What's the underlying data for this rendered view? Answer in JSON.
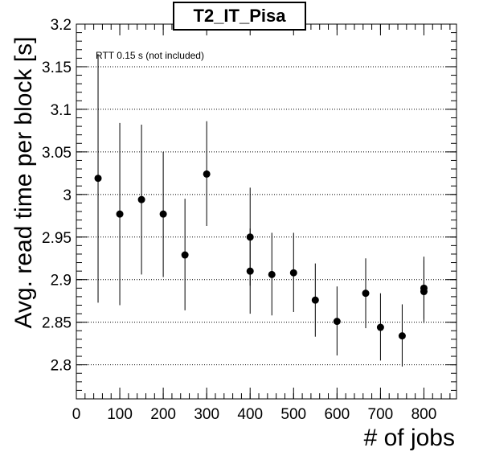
{
  "chart_data": {
    "type": "scatter",
    "title": "T2_IT_Pisa",
    "xlabel": "# of jobs",
    "ylabel": "Avg. read time per block [s]",
    "annotation": "RTT 0.15 s (not included)",
    "xlim": [
      0,
      875
    ],
    "ylim": [
      2.76,
      3.2
    ],
    "x_ticks": [
      "0",
      "100",
      "200",
      "300",
      "400",
      "500",
      "600",
      "700",
      "800"
    ],
    "y_ticks": [
      "2.8",
      "2.85",
      "2.9",
      "2.95",
      "3",
      "3.05",
      "3.1",
      "3.15",
      "3.2"
    ],
    "grid": "horizontal dotted",
    "points": [
      {
        "x": 50,
        "y": 3.019,
        "ylow": 2.873,
        "yhigh": 3.165
      },
      {
        "x": 100,
        "y": 2.977,
        "ylow": 2.87,
        "yhigh": 3.084
      },
      {
        "x": 150,
        "y": 2.994,
        "ylow": 2.906,
        "yhigh": 3.082
      },
      {
        "x": 200,
        "y": 2.977,
        "ylow": 2.903,
        "yhigh": 3.05
      },
      {
        "x": 250,
        "y": 2.929,
        "ylow": 2.864,
        "yhigh": 2.995
      },
      {
        "x": 300,
        "y": 3.024,
        "ylow": 2.963,
        "yhigh": 3.086
      },
      {
        "x": 400,
        "y": 2.95,
        "ylow": 2.893,
        "yhigh": 3.008
      },
      {
        "x": 400,
        "y": 2.91,
        "ylow": 2.86,
        "yhigh": 2.96
      },
      {
        "x": 450,
        "y": 2.906,
        "ylow": 2.858,
        "yhigh": 2.955
      },
      {
        "x": 500,
        "y": 2.908,
        "ylow": 2.862,
        "yhigh": 2.955
      },
      {
        "x": 550,
        "y": 2.876,
        "ylow": 2.833,
        "yhigh": 2.919
      },
      {
        "x": 600,
        "y": 2.851,
        "ylow": 2.811,
        "yhigh": 2.892
      },
      {
        "x": 666,
        "y": 2.884,
        "ylow": 2.843,
        "yhigh": 2.925
      },
      {
        "x": 700,
        "y": 2.844,
        "ylow": 2.805,
        "yhigh": 2.884
      },
      {
        "x": 750,
        "y": 2.834,
        "ylow": 2.798,
        "yhigh": 2.871
      },
      {
        "x": 800,
        "y": 2.89,
        "ylow": 2.854,
        "yhigh": 2.927
      },
      {
        "x": 800,
        "y": 2.886,
        "ylow": 2.849,
        "yhigh": 2.923
      }
    ]
  }
}
